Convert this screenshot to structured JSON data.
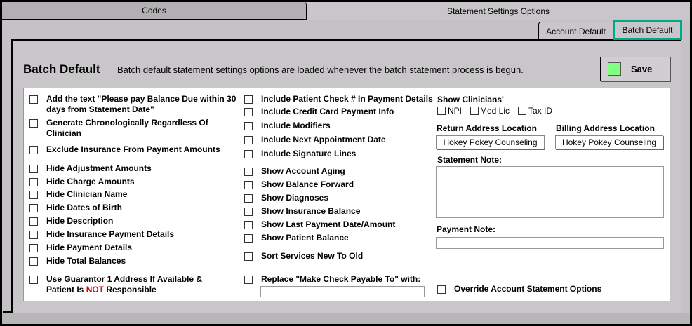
{
  "top_tabs": [
    {
      "label": "Codes"
    },
    {
      "label": "Statement Settings Options"
    }
  ],
  "sub_tabs": [
    {
      "label": "Account Default"
    },
    {
      "label": "Batch Default"
    }
  ],
  "header": {
    "title": "Batch Default",
    "description": "Batch default statement settings options are loaded whenever the batch statement process is begun.",
    "save_label": "Save",
    "save_color": "#80ff80"
  },
  "col1": [
    {
      "label": "Add the text \"Please pay Balance Due within 30 days from Statement Date\"",
      "checked": false
    },
    {
      "label": "Generate Chronologically Regardless Of Clinician",
      "checked": false
    },
    {
      "label": "Exclude Insurance From Payment Amounts",
      "checked": false
    },
    {
      "label": "Hide Adjustment Amounts",
      "checked": false
    },
    {
      "label": "Hide Charge Amounts",
      "checked": false
    },
    {
      "label": "Hide Clinician Name",
      "checked": false
    },
    {
      "label": "Hide Dates of Birth",
      "checked": false
    },
    {
      "label": "Hide Description",
      "checked": false
    },
    {
      "label": "Hide Insurance Payment Details",
      "checked": false
    },
    {
      "label": "Hide Payment Details",
      "checked": false
    },
    {
      "label": "Hide Total Balances",
      "checked": false
    }
  ],
  "guarantor": {
    "part1": "Use Guarantor 1 Address If Available & Patient Is ",
    "part2": "NOT",
    "part3": " Responsible",
    "checked": false
  },
  "col2": [
    {
      "label": "Include Patient Check # In Payment Details",
      "checked": false
    },
    {
      "label": "Include Credit Card Payment Info",
      "checked": false
    },
    {
      "label": "Include Modifiers",
      "checked": false
    },
    {
      "label": "Include Next Appointment Date",
      "checked": false
    },
    {
      "label": "Include Signature Lines",
      "checked": false
    },
    {
      "label": "Show Account Aging",
      "checked": false
    },
    {
      "label": "Show Balance Forward",
      "checked": false
    },
    {
      "label": "Show Diagnoses",
      "checked": false
    },
    {
      "label": "Show Insurance Balance",
      "checked": false
    },
    {
      "label": "Show Last Payment Date/Amount",
      "checked": false
    },
    {
      "label": "Show Patient Balance",
      "checked": false
    },
    {
      "label": "Sort Services New To Old",
      "checked": false
    }
  ],
  "replace": {
    "label": "Replace \"Make Check Payable To\" with:",
    "value": ""
  },
  "clinicians": {
    "label": "Show Clinicians'",
    "options": [
      {
        "label": "NPI"
      },
      {
        "label": "Med Lic"
      },
      {
        "label": "Tax ID"
      }
    ]
  },
  "return_address": {
    "label": "Return Address Location",
    "value": "Hokey Pokey Counseling"
  },
  "billing_address": {
    "label": "Billing Address Location",
    "value": "Hokey Pokey Counseling"
  },
  "statement_note": {
    "label": "Statement Note:",
    "value": ""
  },
  "payment_note": {
    "label": "Payment Note:",
    "value": ""
  },
  "override": {
    "label": "Override Account Statement Options",
    "checked": false
  },
  "accent_color": "#00a88a"
}
